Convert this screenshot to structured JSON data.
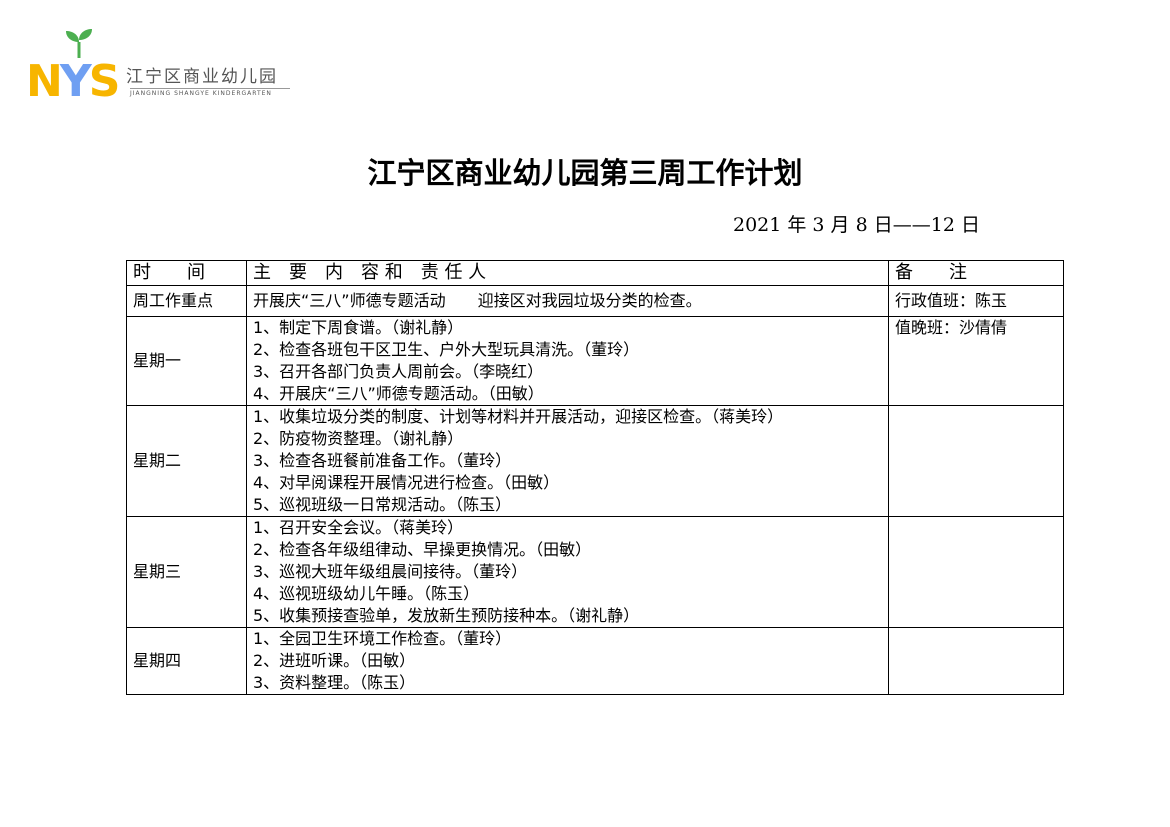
{
  "logo": {
    "letters": "NYS",
    "name_cn": "江宁区商业幼儿园",
    "name_en": "JIANGNING SHANGYE KINDERGARTEN",
    "colors": {
      "n_s": "#f7b500",
      "y": "#6f9ff2",
      "sprout": "#4caf50"
    }
  },
  "title": "江宁区商业幼儿园第三周工作计划",
  "date_range": "2021 年 3 月 8 日——12 日",
  "table": {
    "headers": [
      "时　　间",
      "主　要　内　容 和　责 任 人",
      "备　　注"
    ],
    "focus": {
      "label": "周工作重点",
      "content": "开展庆“三八”师德专题活动　　迎接区对我园垃圾分类的检查。",
      "note": "行政值班：陈玉"
    },
    "days": [
      {
        "day": "星期一",
        "items": [
          "1、制定下周食谱。（谢礼静）",
          "2、检查各班包干区卫生、户外大型玩具清洗。（董玲）",
          "3、召开各部门负责人周前会。（李晓红）",
          "4、开展庆“三八”师德专题活动。（田敏）"
        ],
        "note": "值晚班：沙倩倩"
      },
      {
        "day": "星期二",
        "items": [
          "1、收集垃圾分类的制度、计划等材料并开展活动，迎接区检查。（蒋美玲）",
          "2、防疫物资整理。（谢礼静）",
          "3、检查各班餐前准备工作。（董玲）",
          "4、对早阅课程开展情况进行检查。（田敏）",
          "5、巡视班级一日常规活动。（陈玉）"
        ],
        "note": ""
      },
      {
        "day": "星期三",
        "items": [
          "1、召开安全会议。（蒋美玲）",
          "2、检查各年级组律动、早操更换情况。（田敏）",
          "3、巡视大班年级组晨间接待。（董玲）",
          "4、巡视班级幼儿午睡。（陈玉）",
          "5、收集预接查验单，发放新生预防接种本。（谢礼静）"
        ],
        "note": ""
      },
      {
        "day": "星期四",
        "items": [
          "1、全园卫生环境工作检查。（董玲）",
          "2、进班听课。（田敏）",
          "3、资料整理。（陈玉）"
        ],
        "note": ""
      }
    ]
  }
}
